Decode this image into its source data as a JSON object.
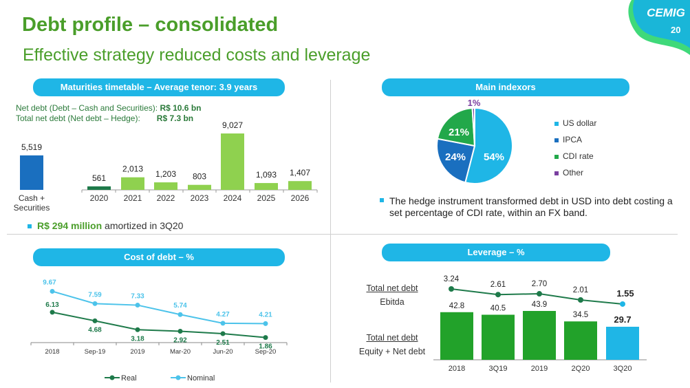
{
  "header": {
    "title": "Debt profile – consolidated",
    "subtitle": "Effective strategy reduced costs and leverage",
    "logo_text": "CEMIG",
    "page_number": "20"
  },
  "maturities": {
    "pill": "Maturities timetable – Average tenor: 3.9 years",
    "net_debt_label": "Net debt (Debt – Cash and Securities):",
    "net_debt_value": "R$ 10.6 bn",
    "total_net_debt_label": "Total net debt (Net debt – Hedge):",
    "total_net_debt_value": "R$ 7.3 bn",
    "amortized_value": "R$ 294 million",
    "amortized_text": "amortized in 3Q20"
  },
  "indexors": {
    "pill": "Main indexors",
    "hedge_note": "The hedge instrument transformed debt in USD into debt costing a set percentage of CDI rate, within an FX band."
  },
  "cost": {
    "pill": "Cost of debt – %"
  },
  "leverage": {
    "pill": "Leverage – %",
    "ratio1_top": "Total net debt",
    "ratio1_bottom": "Ebitda",
    "ratio2_top": "Total net debt",
    "ratio2_bottom": "Equity + Net debt"
  },
  "chart_data": [
    {
      "id": "maturities",
      "type": "bar",
      "categories": [
        "Cash + Securities",
        "2020",
        "2021",
        "2022",
        "2023",
        "2024",
        "2025",
        "2026"
      ],
      "values": [
        5519,
        561,
        2013,
        1203,
        803,
        9027,
        1093,
        1407
      ],
      "labels": [
        "5,519",
        "561",
        "2,013",
        "1,203",
        "803",
        "9,027",
        "1,093",
        "1,407"
      ],
      "colors": [
        "#1a6fbf",
        "#1e7a4a",
        "#8fd14f",
        "#8fd14f",
        "#8fd14f",
        "#8fd14f",
        "#8fd14f",
        "#8fd14f"
      ]
    },
    {
      "id": "indexors",
      "type": "pie",
      "slices": [
        {
          "name": "US dollar",
          "value": 54,
          "label": "54%",
          "color": "#1fb6e6"
        },
        {
          "name": "IPCA",
          "value": 24,
          "label": "24%",
          "color": "#1a6fbf"
        },
        {
          "name": "CDI rate",
          "value": 21,
          "label": "21%",
          "color": "#22a84a"
        },
        {
          "name": "Other",
          "value": 1,
          "label": "1%",
          "color": "#7a3fa0"
        }
      ],
      "legend_position": "right"
    },
    {
      "id": "cost_of_debt",
      "type": "line",
      "categories": [
        "2018",
        "Sep-19",
        "2019",
        "Mar-20",
        "Jun-20",
        "Sep-20"
      ],
      "series": [
        {
          "name": "Real",
          "values": [
            6.13,
            4.68,
            3.18,
            2.92,
            2.51,
            1.86
          ],
          "labels": [
            "6.13",
            "4.68",
            "3.18",
            "2.92",
            "2.51",
            "1.86"
          ],
          "color": "#1e7a4a"
        },
        {
          "name": "Nominal",
          "values": [
            9.67,
            7.59,
            7.33,
            5.74,
            4.27,
            4.21
          ],
          "labels": [
            "9.67",
            "7.59",
            "7.33",
            "5.74",
            "4.27",
            "4.21"
          ],
          "color": "#4cc3ea"
        }
      ],
      "legend_position": "bottom"
    },
    {
      "id": "leverage",
      "type": "bar",
      "categories": [
        "2018",
        "3Q19",
        "2019",
        "2Q20",
        "3Q20"
      ],
      "series": [
        {
          "name": "Total net debt / Equity + Net debt",
          "values": [
            42.8,
            40.5,
            43.9,
            34.5,
            29.7
          ],
          "labels": [
            "42.8",
            "40.5",
            "43.9",
            "34.5",
            "29.7"
          ],
          "colors": [
            "#22a22a",
            "#22a22a",
            "#22a22a",
            "#22a22a",
            "#1fb6e6"
          ]
        },
        {
          "name": "Total net debt / Ebitda",
          "values": [
            3.24,
            2.61,
            2.7,
            2.01,
            1.55
          ],
          "labels": [
            "3.24",
            "2.61",
            "2.70",
            "2.01",
            "1.55"
          ],
          "color": "#1e7a4a"
        }
      ]
    }
  ]
}
